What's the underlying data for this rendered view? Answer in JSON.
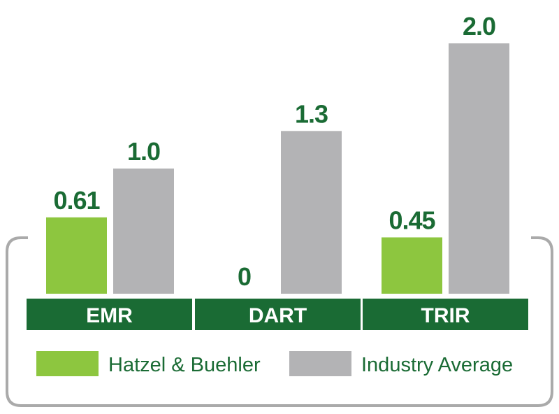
{
  "chart_data": {
    "type": "bar",
    "categories": [
      "EMR",
      "DART",
      "TRIR"
    ],
    "series": [
      {
        "name": "Hatzel & Buehler",
        "values": [
          0.61,
          0,
          0.45
        ],
        "labels": [
          "0.61",
          "0",
          "0.45"
        ],
        "color": "#8dc63f"
      },
      {
        "name": "Industry Average",
        "values": [
          1.0,
          1.3,
          2.0
        ],
        "labels": [
          "1.0",
          "1.3",
          "2.0"
        ],
        "color": "#b3b3b5"
      }
    ],
    "title": "",
    "xlabel": "",
    "ylabel": "",
    "ylim": [
      0,
      2.0
    ],
    "grid": false,
    "legend_position": "bottom"
  },
  "colors": {
    "value_label": "#1a6b34",
    "category_band": "#1a6b34",
    "legend_text": "#1a6b34",
    "frame": "#aaaaaa"
  }
}
